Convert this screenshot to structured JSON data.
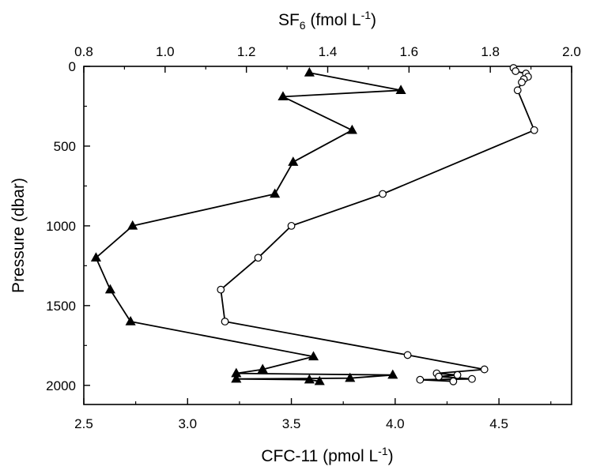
{
  "chart_data": {
    "type": "line",
    "title": "",
    "top_axis": {
      "label": "SF",
      "label_sub": "6",
      "label_unit": " (fmol L",
      "label_sup": "-1",
      "label_close": ")",
      "range": [
        0.8,
        2.0
      ],
      "ticks": [
        0.8,
        1.0,
        1.2,
        1.4,
        1.6,
        1.8,
        2.0
      ],
      "tick_labels": [
        "0.8",
        "1.0",
        "1.2",
        "1.4",
        "1.6",
        "1.8",
        "2.0"
      ]
    },
    "bottom_axis": {
      "label": "CFC-11 (pmol L",
      "label_sup": "-1",
      "label_close": ")",
      "range": [
        2.5,
        4.85
      ],
      "ticks": [
        2.5,
        3.0,
        3.5,
        4.0,
        4.5
      ],
      "tick_labels": [
        "2.5",
        "3.0",
        "3.5",
        "4.0",
        "4.5"
      ]
    },
    "y_axis": {
      "label": "Pressure (dbar)",
      "range": [
        0,
        2120
      ],
      "inverted": true,
      "ticks": [
        0,
        500,
        1000,
        1500,
        2000
      ],
      "tick_labels": [
        "0",
        "500",
        "1000",
        "1500",
        "2000"
      ]
    },
    "series": [
      {
        "axis": "top",
        "marker": "filled-triangle",
        "color": "#000000",
        "points": [
          [
            1.355,
            40
          ],
          [
            1.58,
            150
          ],
          [
            1.29,
            190
          ],
          [
            1.46,
            400
          ],
          [
            1.315,
            600
          ],
          [
            1.27,
            800
          ],
          [
            0.92,
            1000
          ],
          [
            0.83,
            1200
          ],
          [
            0.865,
            1400
          ],
          [
            0.915,
            1600
          ],
          [
            1.365,
            1820
          ],
          [
            1.24,
            1900
          ],
          [
            1.175,
            1925
          ],
          [
            1.56,
            1935
          ],
          [
            1.455,
            1955
          ],
          [
            1.175,
            1960
          ],
          [
            1.355,
            1965
          ],
          [
            1.38,
            1975
          ]
        ]
      },
      {
        "axis": "bottom",
        "marker": "open-circle",
        "color": "#000000",
        "points": [
          [
            4.57,
            10
          ],
          [
            4.58,
            30
          ],
          [
            4.63,
            45
          ],
          [
            4.64,
            65
          ],
          [
            4.62,
            80
          ],
          [
            4.61,
            100
          ],
          [
            4.59,
            150
          ],
          [
            4.67,
            400
          ],
          [
            3.94,
            800
          ],
          [
            3.5,
            1000
          ],
          [
            3.34,
            1200
          ],
          [
            3.16,
            1400
          ],
          [
            3.18,
            1600
          ],
          [
            4.06,
            1810
          ],
          [
            4.43,
            1900
          ],
          [
            4.2,
            1925
          ],
          [
            4.3,
            1935
          ],
          [
            4.21,
            1945
          ],
          [
            4.37,
            1960
          ],
          [
            4.12,
            1965
          ],
          [
            4.28,
            1975
          ]
        ]
      }
    ],
    "grid": false,
    "legend": "none"
  }
}
